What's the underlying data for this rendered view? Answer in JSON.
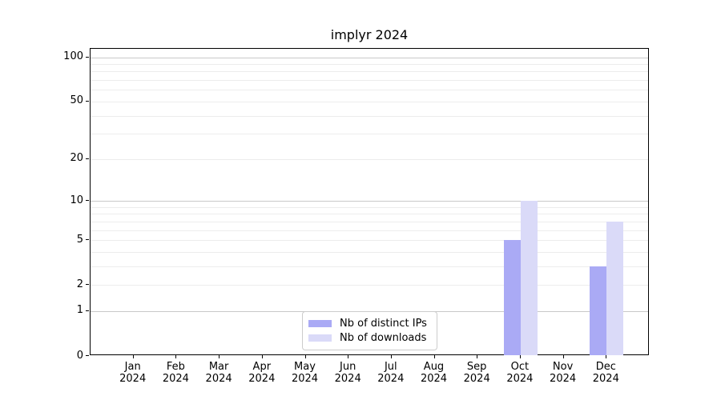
{
  "title": "implyr 2024",
  "chart_data": {
    "type": "bar",
    "categories": [
      "Jan 2024",
      "Feb 2024",
      "Mar 2024",
      "Apr 2024",
      "May 2024",
      "Jun 2024",
      "Jul 2024",
      "Aug 2024",
      "Sep 2024",
      "Oct 2024",
      "Nov 2024",
      "Dec 2024"
    ],
    "series": [
      {
        "name": "Nb of distinct IPs",
        "color": "#aaaaf5",
        "values": [
          0,
          0,
          0,
          0,
          0,
          0,
          0,
          0,
          0,
          5,
          0,
          3
        ]
      },
      {
        "name": "Nb of downloads",
        "color": "#dadaf8",
        "values": [
          0,
          0,
          0,
          0,
          0,
          0,
          0,
          0,
          0,
          10,
          0,
          7
        ]
      }
    ],
    "title": "implyr 2024",
    "xlabel": "",
    "ylabel": "",
    "yscale": "log1p",
    "ylim": [
      0,
      114
    ],
    "yticks": [
      0,
      1,
      2,
      5,
      10,
      20,
      50,
      100
    ],
    "major_gridlines": [
      1,
      10,
      100
    ],
    "minor_gridlines": [
      2,
      3,
      4,
      5,
      6,
      7,
      8,
      9,
      20,
      30,
      40,
      50,
      60,
      70,
      80,
      90
    ],
    "grid": true,
    "legend_position": "lower center"
  },
  "colors": {
    "axis": "#000000",
    "text": "#000000",
    "grid_major": "#c9c9c9",
    "grid_minor": "#ececec",
    "legend_border": "#cccccc",
    "background": "#ffffff"
  }
}
